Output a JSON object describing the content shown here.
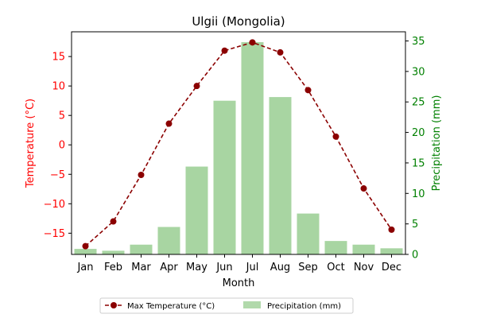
{
  "chart_data": {
    "type": "bar",
    "title": "Ulgii (Mongolia)",
    "xlabel": "Month",
    "categories": [
      "Jan",
      "Feb",
      "Mar",
      "Apr",
      "May",
      "Jun",
      "Jul",
      "Aug",
      "Sep",
      "Oct",
      "Nov",
      "Dec"
    ],
    "series": [
      {
        "name": "Max Temperature (°C)",
        "type": "line",
        "axis": "left",
        "values": [
          -17.2,
          -13.0,
          -5.1,
          3.6,
          10.0,
          16.0,
          17.4,
          15.7,
          9.3,
          1.4,
          -7.4,
          -14.4
        ]
      },
      {
        "name": "Precipitation (mm)",
        "type": "bar",
        "axis": "right",
        "values": [
          0.9,
          0.6,
          1.6,
          4.5,
          14.4,
          25.2,
          34.8,
          25.8,
          6.7,
          2.2,
          1.6,
          1.0
        ]
      }
    ],
    "y_left": {
      "label": "Temperature (°C)",
      "ylim": [
        -18.6,
        19.2
      ],
      "ticks": [
        -15,
        -10,
        -5,
        0,
        5,
        10,
        15
      ],
      "color": "#ff0000"
    },
    "y_right": {
      "label": "Precipitation (mm)",
      "ylim": [
        0,
        36.5
      ],
      "ticks": [
        0,
        5,
        10,
        15,
        20,
        25,
        30,
        35
      ],
      "color": "#008000"
    },
    "colors": {
      "line": "#8b0000",
      "bars": "#a8d5a2"
    },
    "grid": false,
    "legend": "bottom-center"
  }
}
